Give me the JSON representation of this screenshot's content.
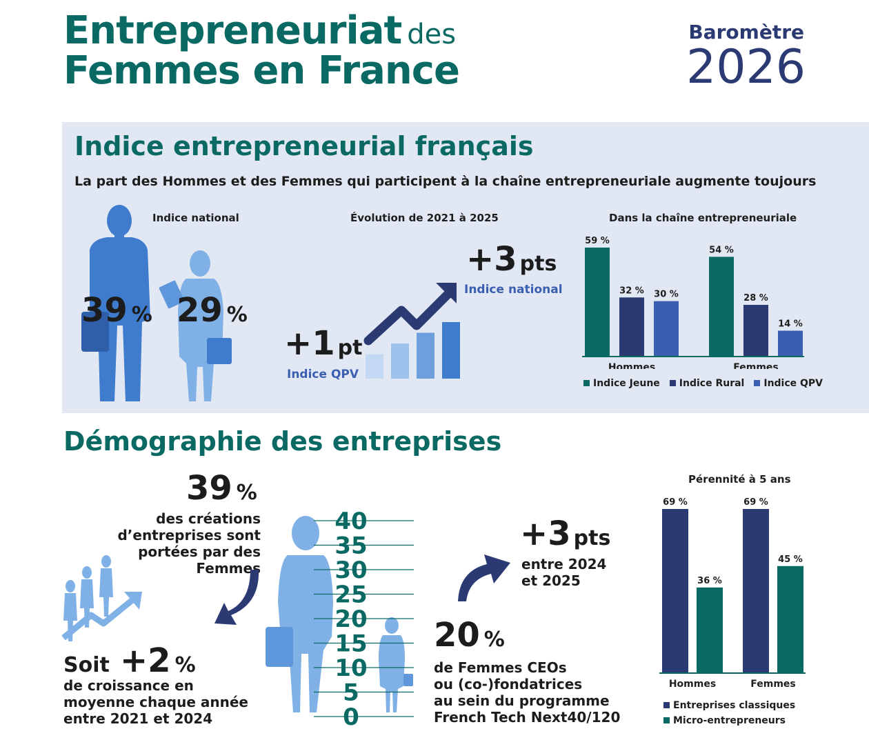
{
  "header": {
    "title_part1": "Entrepreneuriat",
    "title_part2": "des",
    "title_line2": "Femmes en France",
    "barometre_label": "Baromètre",
    "barometre_year": "2026"
  },
  "colors": {
    "teal": "#0a6a63",
    "navy": "#2b3a73",
    "blue": "#3a5fb0",
    "panel_bg": "#e2e8f3",
    "figure_blue": "#3f7ccd",
    "figure_light": "#7fb0e6"
  },
  "section1": {
    "title": "Indice entrepreneurial français",
    "subtitle": "La part des Hommes et des Femmes qui participent à la chaîne entrepreneuriale augmente toujours",
    "national": {
      "heading": "Indice national",
      "men_value": "39",
      "women_value": "29",
      "pct_sign": "%"
    },
    "evolution": {
      "heading": "Évolution de 2021 à 2025",
      "national_value": "+3",
      "national_unit": "pts",
      "national_label": "Indice national",
      "qpv_value": "+1",
      "qpv_unit": "pt",
      "qpv_label": "Indice QPV"
    }
  },
  "section2": {
    "title": "Démographie des entreprises",
    "creations_value": "39",
    "creations_pct": "%",
    "creations_text": [
      "des créations",
      "d’entreprises sont",
      "portées par des",
      "Femmes"
    ],
    "growth_prefix": "Soit",
    "growth_value": "+2",
    "growth_pct": "%",
    "growth_text": [
      "de croissance en",
      "moyenne chaque année",
      "entre 2021 et 2024"
    ],
    "change_value": "+3",
    "change_unit": "pts",
    "change_text": [
      "entre 2024",
      "et 2025"
    ],
    "ceo_value": "20",
    "ceo_pct": "%",
    "ceo_text": [
      "de Femmes CEOs",
      "ou (co-)fondatrices",
      "au sein du programme",
      "French Tech Next40/120"
    ]
  },
  "chart_data": [
    {
      "type": "bar",
      "title": "Dans la chaîne entrepreneuriale",
      "categories": [
        "Hommes",
        "Femmes"
      ],
      "series": [
        {
          "name": "Indice Jeune",
          "values": [
            59,
            54
          ],
          "color": "#0a6a63"
        },
        {
          "name": "Indice Rural",
          "values": [
            32,
            28
          ],
          "color": "#2b3a73"
        },
        {
          "name": "Indice QPV",
          "values": [
            30,
            14
          ],
          "color": "#3a5fb0"
        }
      ],
      "ylim": [
        0,
        59
      ],
      "legend": "bottom",
      "value_suffix": " %"
    },
    {
      "type": "bar",
      "title": "Pérennité à 5 ans",
      "categories": [
        "Hommes",
        "Femmes"
      ],
      "series": [
        {
          "name": "Entreprises classiques",
          "values": [
            69,
            69
          ],
          "color": "#2b3a73"
        },
        {
          "name": "Micro-entrepreneurs",
          "values": [
            36,
            45
          ],
          "color": "#0a6a63"
        }
      ],
      "ylim": [
        0,
        69
      ],
      "legend": "bottom",
      "value_suffix": " %"
    },
    {
      "type": "bar",
      "title": "",
      "values": [
        1,
        2,
        3,
        4
      ],
      "ticks": [
        "40",
        "35",
        "30",
        "25",
        "20",
        "15",
        "10",
        "5",
        "0"
      ]
    }
  ]
}
